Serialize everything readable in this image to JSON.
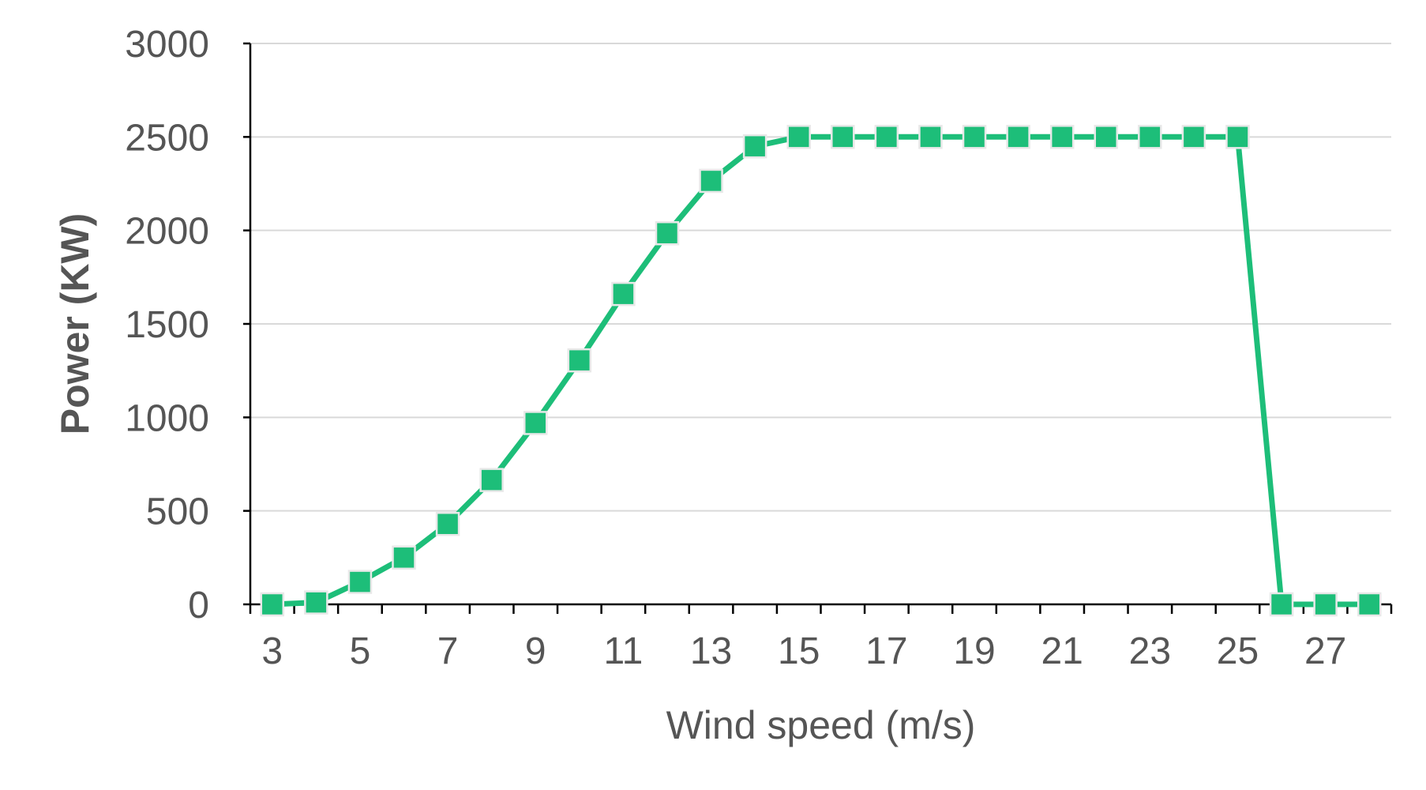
{
  "colors": {
    "series": "#1dbe79",
    "axis": "#000000",
    "grid": "#d9d9d9",
    "text": "#555555"
  },
  "chart_data": {
    "type": "line",
    "title": "",
    "xlabel": "Wind speed (m/s)",
    "ylabel": "Power (KW)",
    "xlim": [
      2.5,
      28.5
    ],
    "ylim": [
      0,
      3000
    ],
    "y_ticks": [
      0,
      500,
      1000,
      1500,
      2000,
      2500,
      3000
    ],
    "x_tick_labels": [
      3,
      5,
      7,
      9,
      11,
      13,
      15,
      17,
      19,
      21,
      23,
      25,
      27
    ],
    "grid": true,
    "legend": "none",
    "marker": "square",
    "x": [
      3,
      4,
      5,
      6,
      7,
      8,
      9,
      10,
      11,
      12,
      13,
      14,
      15,
      16,
      17,
      18,
      19,
      20,
      21,
      22,
      23,
      24,
      25,
      26,
      27,
      28
    ],
    "values": [
      0,
      10,
      120,
      250,
      430,
      665,
      970,
      1305,
      1660,
      1985,
      2265,
      2450,
      2500,
      2500,
      2500,
      2500,
      2500,
      2500,
      2500,
      2500,
      2500,
      2500,
      2500,
      0,
      0,
      0
    ]
  }
}
